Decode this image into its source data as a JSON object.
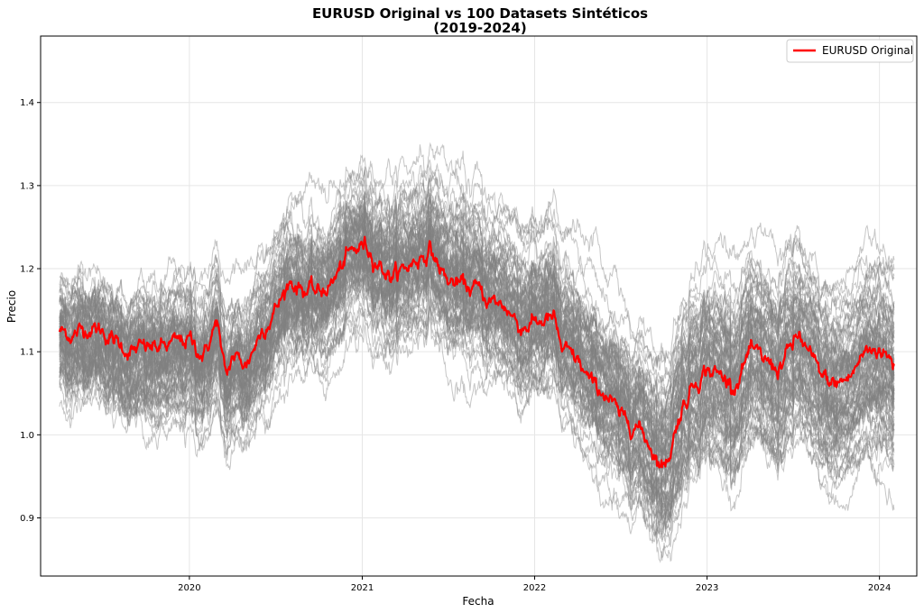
{
  "chart_data": {
    "type": "line",
    "title": "EURUSD Original vs 100 Datasets Sintéticos",
    "subtitle": "(2019-2024)",
    "xlabel": "Fecha",
    "ylabel": "Precio",
    "xlim": [
      "2019-02-20",
      "2024-03-20"
    ],
    "ylim": [
      0.83,
      1.48
    ],
    "x_ticks": [
      {
        "date": "2020-01-01",
        "label": "2020"
      },
      {
        "date": "2021-01-01",
        "label": "2021"
      },
      {
        "date": "2022-01-01",
        "label": "2022"
      },
      {
        "date": "2023-01-01",
        "label": "2023"
      },
      {
        "date": "2024-01-01",
        "label": "2024"
      }
    ],
    "y_ticks": [
      {
        "value": 0.9,
        "label": "0.9"
      },
      {
        "value": 1.0,
        "label": "1.0"
      },
      {
        "value": 1.1,
        "label": "1.1"
      },
      {
        "value": 1.2,
        "label": "1.2"
      },
      {
        "value": 1.3,
        "label": "1.3"
      },
      {
        "value": 1.4,
        "label": "1.4"
      }
    ],
    "grid": true,
    "legend": {
      "position": "top-right",
      "entries": [
        "EURUSD Original"
      ]
    },
    "colors": {
      "original": "#ff0000",
      "synthetic": "#808080"
    },
    "synthetic_count": 100,
    "series": [
      {
        "name": "EURUSD Original",
        "x": [
          "2019-04-01",
          "2019-05-01",
          "2019-06-01",
          "2019-07-01",
          "2019-08-01",
          "2019-09-01",
          "2019-10-01",
          "2019-11-01",
          "2019-12-01",
          "2020-01-01",
          "2020-02-01",
          "2020-03-01",
          "2020-03-10",
          "2020-03-20",
          "2020-04-01",
          "2020-05-01",
          "2020-06-01",
          "2020-07-01",
          "2020-08-01",
          "2020-09-01",
          "2020-10-01",
          "2020-11-01",
          "2020-12-01",
          "2021-01-06",
          "2021-02-01",
          "2021-03-01",
          "2021-04-01",
          "2021-05-25",
          "2021-06-15",
          "2021-07-01",
          "2021-08-01",
          "2021-09-01",
          "2021-10-01",
          "2021-11-01",
          "2021-12-01",
          "2022-01-01",
          "2022-02-10",
          "2022-03-01",
          "2022-04-01",
          "2022-05-01",
          "2022-06-01",
          "2022-07-01",
          "2022-08-01",
          "2022-09-01",
          "2022-09-28",
          "2022-10-15",
          "2022-11-01",
          "2022-12-01",
          "2023-01-01",
          "2023-02-01",
          "2023-03-01",
          "2023-04-01",
          "2023-05-01",
          "2023-06-01",
          "2023-07-15",
          "2023-08-01",
          "2023-09-01",
          "2023-10-01",
          "2023-11-01",
          "2023-12-01",
          "2024-01-01",
          "2024-02-01"
        ],
        "values": [
          1.125,
          1.12,
          1.13,
          1.125,
          1.11,
          1.1,
          1.105,
          1.105,
          1.11,
          1.115,
          1.095,
          1.14,
          1.09,
          1.07,
          1.095,
          1.085,
          1.125,
          1.15,
          1.185,
          1.175,
          1.17,
          1.185,
          1.215,
          1.23,
          1.21,
          1.19,
          1.2,
          1.223,
          1.2,
          1.185,
          1.18,
          1.175,
          1.16,
          1.155,
          1.13,
          1.135,
          1.14,
          1.1,
          1.09,
          1.06,
          1.05,
          1.02,
          1.015,
          0.99,
          0.96,
          0.98,
          1.02,
          1.06,
          1.08,
          1.07,
          1.06,
          1.1,
          1.09,
          1.08,
          1.12,
          1.1,
          1.07,
          1.06,
          1.07,
          1.1,
          1.105,
          1.085
        ]
      }
    ]
  }
}
